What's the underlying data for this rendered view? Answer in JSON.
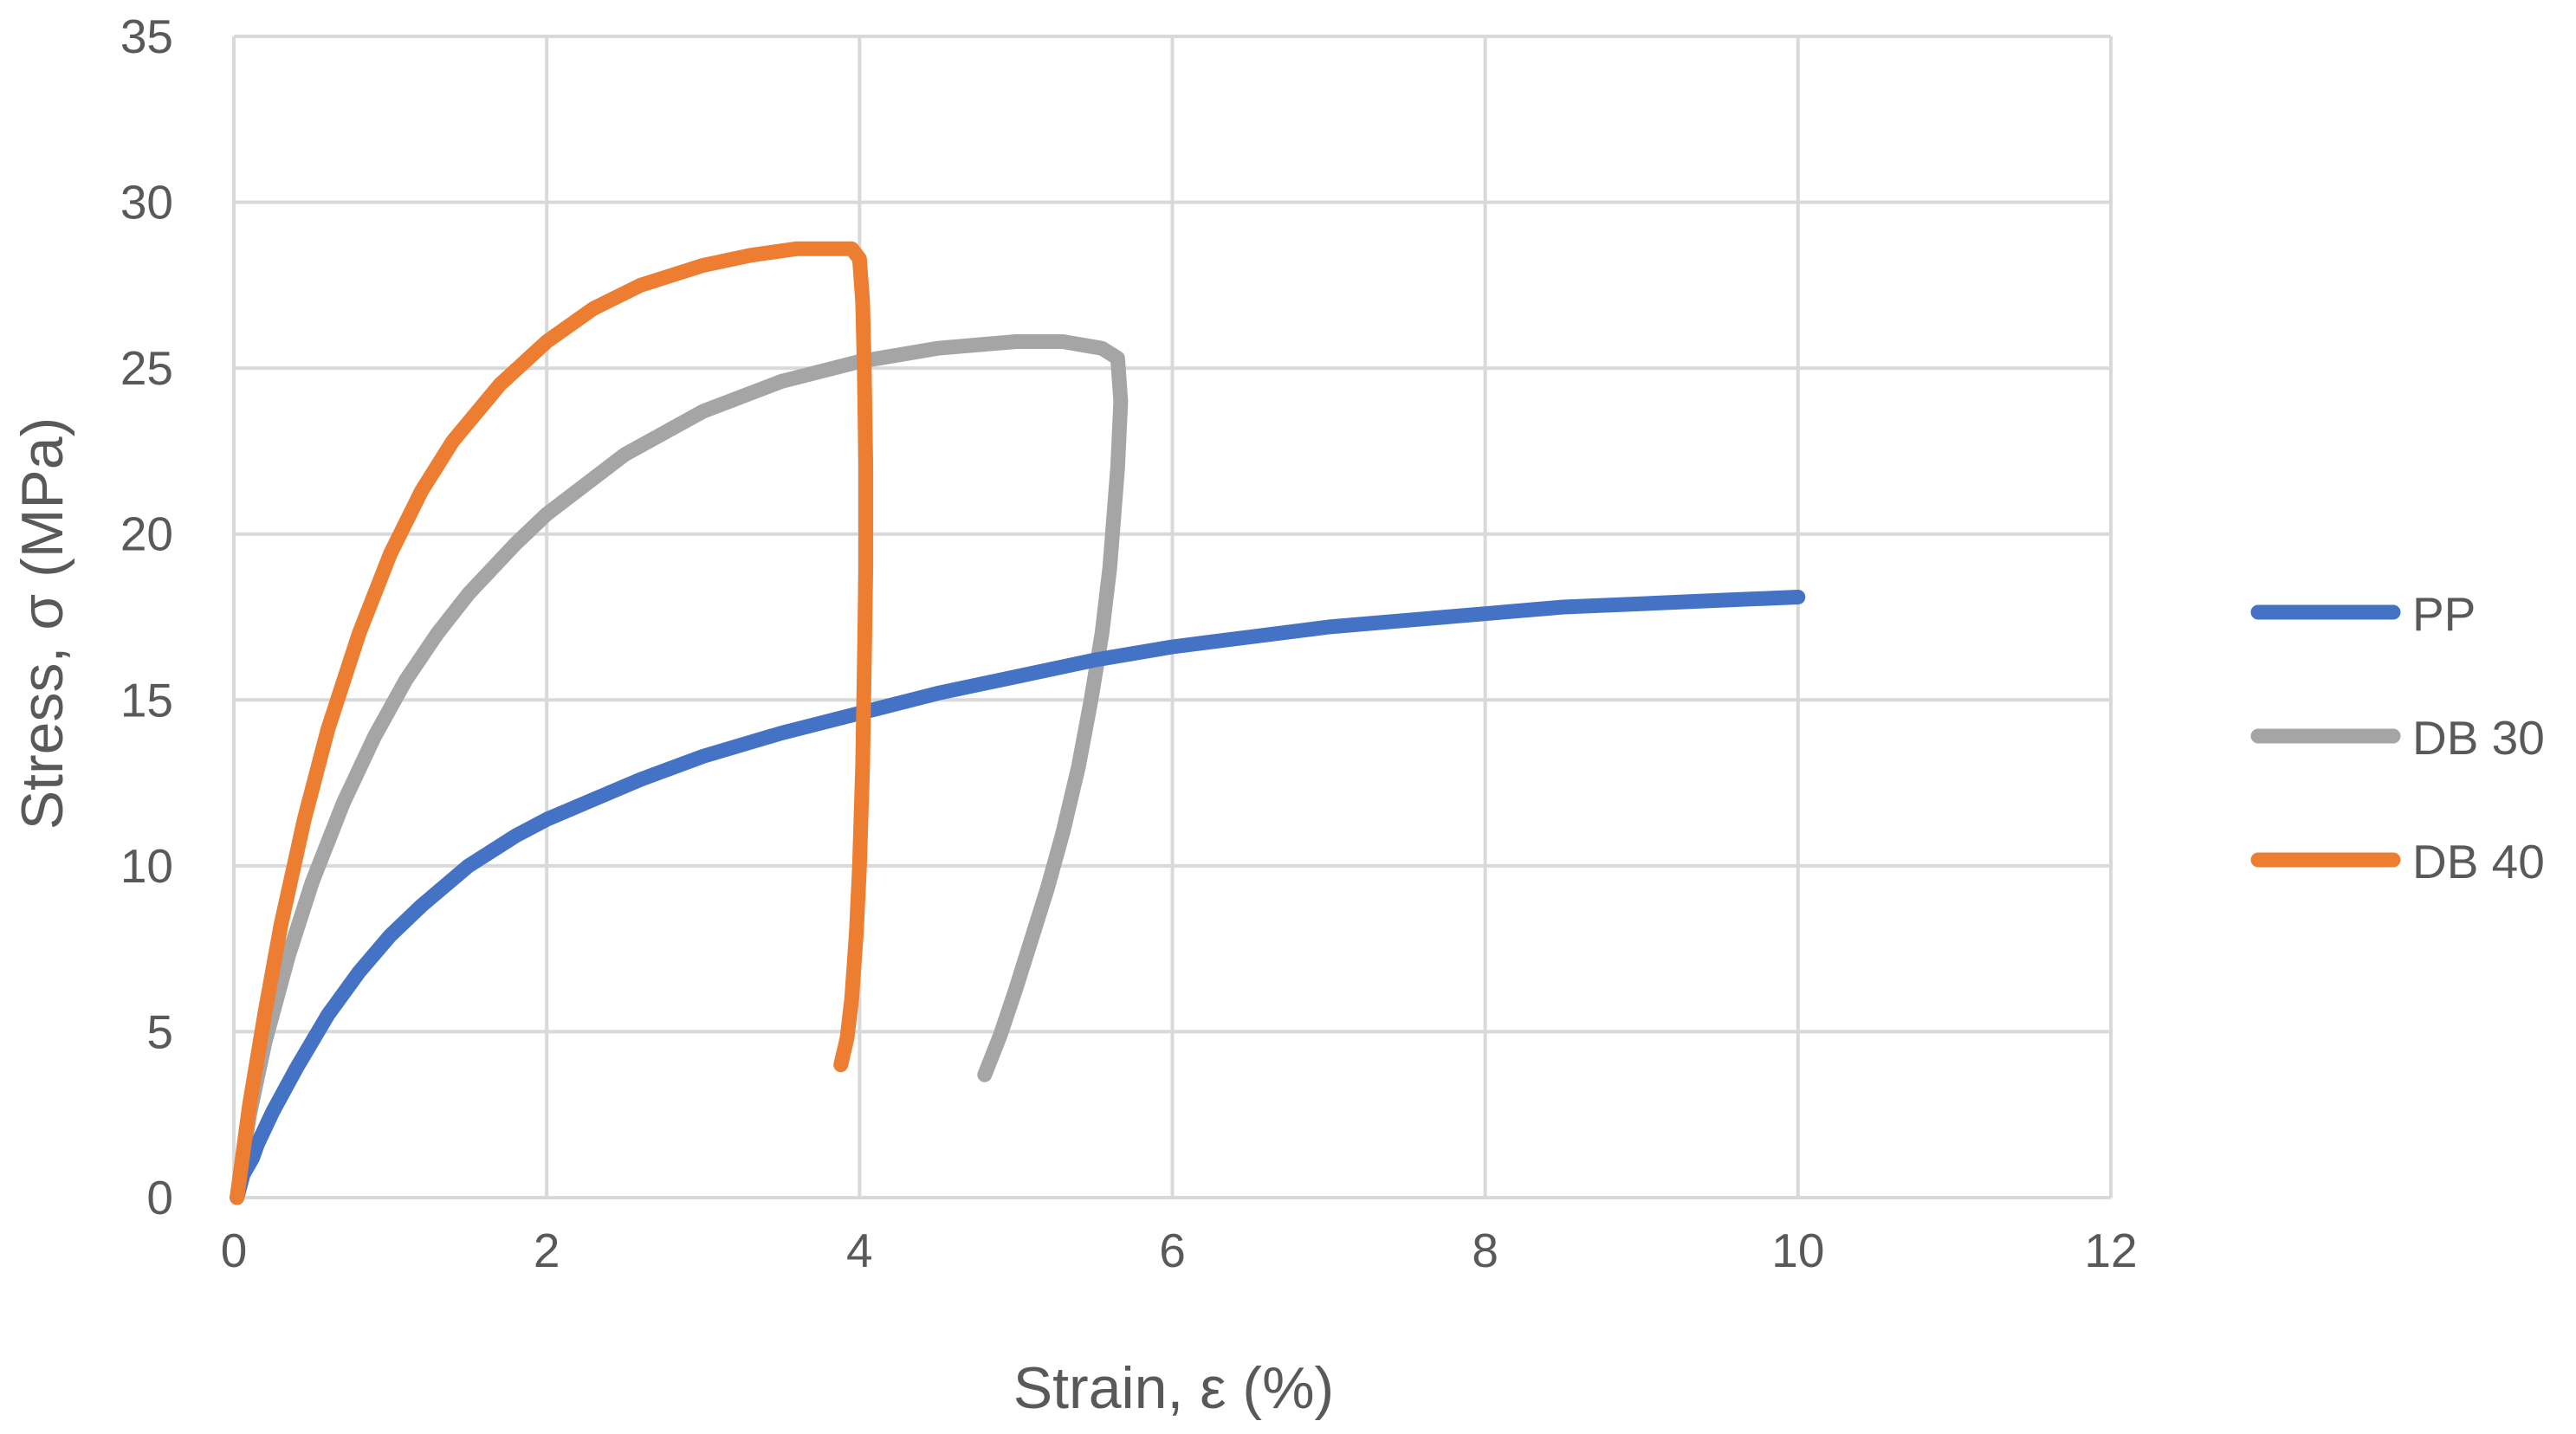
{
  "chart_data": {
    "type": "line",
    "title": "",
    "xlabel": "Strain, ε (%)",
    "ylabel": "Stress, σ (MPa)",
    "xlim": [
      0,
      12
    ],
    "ylim": [
      0,
      35
    ],
    "xticks": [
      0,
      2,
      4,
      6,
      8,
      10,
      12
    ],
    "yticks": [
      0,
      5,
      10,
      15,
      20,
      25,
      30,
      35
    ],
    "grid": true,
    "legend_position": "right",
    "series": [
      {
        "name": "PP",
        "color": "#4472C4",
        "x": [
          0.02,
          0.06,
          0.12,
          0.15,
          0.25,
          0.4,
          0.6,
          0.8,
          1.0,
          1.2,
          1.5,
          1.8,
          2.0,
          2.3,
          2.6,
          3.0,
          3.5,
          4.0,
          4.5,
          5.0,
          5.5,
          6.0,
          6.5,
          7.0,
          7.5,
          8.0,
          8.5,
          9.0,
          9.5,
          10.0
        ],
        "y": [
          0.0,
          0.7,
          1.2,
          1.6,
          2.6,
          3.9,
          5.5,
          6.8,
          7.9,
          8.8,
          10.0,
          10.9,
          11.4,
          12.0,
          12.6,
          13.3,
          14.0,
          14.6,
          15.2,
          15.7,
          16.2,
          16.6,
          16.9,
          17.2,
          17.4,
          17.6,
          17.8,
          17.9,
          18.0,
          18.1
        ]
      },
      {
        "name": "DB 30",
        "color": "#A5A5A5",
        "x": [
          0.02,
          0.1,
          0.2,
          0.35,
          0.5,
          0.7,
          0.9,
          1.1,
          1.3,
          1.5,
          1.8,
          2.0,
          2.5,
          3.0,
          3.5,
          4.0,
          4.5,
          5.0,
          5.3,
          5.55,
          5.65,
          5.67,
          5.65,
          5.6,
          5.55,
          5.48,
          5.4,
          5.3,
          5.2,
          5.1,
          5.0,
          4.9,
          4.8
        ],
        "y": [
          0.0,
          2.5,
          4.7,
          7.3,
          9.5,
          11.9,
          13.9,
          15.6,
          17.0,
          18.2,
          19.7,
          20.6,
          22.4,
          23.7,
          24.6,
          25.2,
          25.6,
          25.8,
          25.8,
          25.6,
          25.3,
          24.0,
          22.0,
          19.0,
          17.0,
          15.0,
          13.0,
          11.0,
          9.3,
          7.8,
          6.3,
          4.9,
          3.7
        ]
      },
      {
        "name": "DB 40",
        "color": "#ED7D31",
        "x": [
          0.02,
          0.1,
          0.2,
          0.3,
          0.45,
          0.6,
          0.8,
          1.0,
          1.2,
          1.4,
          1.7,
          2.0,
          2.3,
          2.6,
          3.0,
          3.3,
          3.6,
          3.8,
          3.95,
          4.0,
          4.02,
          4.03,
          4.04,
          4.04,
          4.03,
          4.02,
          4.0,
          3.98,
          3.95,
          3.92,
          3.88
        ],
        "y": [
          0.0,
          2.8,
          5.6,
          8.2,
          11.4,
          14.1,
          17.0,
          19.4,
          21.3,
          22.8,
          24.5,
          25.8,
          26.8,
          27.5,
          28.1,
          28.4,
          28.6,
          28.6,
          28.6,
          28.3,
          27.0,
          25.0,
          22.0,
          19.0,
          16.0,
          13.0,
          10.0,
          8.0,
          6.0,
          4.8,
          4.0
        ]
      }
    ]
  }
}
